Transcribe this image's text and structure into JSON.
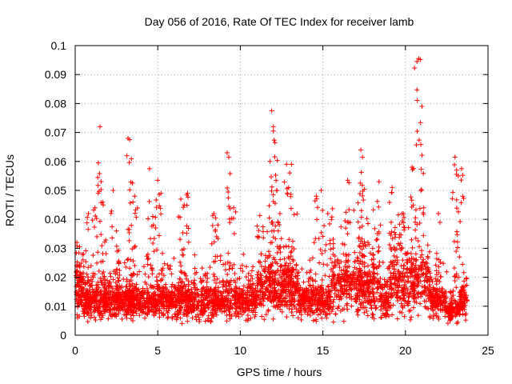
{
  "chart_data": {
    "type": "scatter",
    "title": "Day 056 of 2016, Rate Of TEC Index for receiver lamb",
    "xlabel": "GPS time / hours",
    "ylabel": "ROTI / TECUs",
    "xlim": [
      0,
      25
    ],
    "ylim": [
      0,
      0.1
    ],
    "xticks": [
      0,
      5,
      10,
      15,
      20,
      25
    ],
    "xtick_labels": [
      "0",
      "5",
      "10",
      "15",
      "20",
      "25"
    ],
    "yticks": [
      0,
      0.01,
      0.02,
      0.03,
      0.04,
      0.05,
      0.06,
      0.07,
      0.08,
      0.09,
      0.1
    ],
    "ytick_labels": [
      "0",
      "0.01",
      "0.02",
      "0.03",
      "0.04",
      "0.05",
      "0.06",
      "0.07",
      "0.08",
      "0.09",
      "0.1"
    ],
    "grid": true,
    "marker": "+",
    "marker_color": "#ff0000",
    "series": [
      {
        "name": "ROTI",
        "description_note": "dense point cloud, typical values 0.005-0.02 TECU, spikes below",
        "x": [
          0.1,
          0.3,
          0.5,
          0.8,
          1.2,
          1.4,
          1.5,
          1.7,
          2.3,
          2.5,
          3.2,
          3.3,
          3.5,
          3.6,
          4.5,
          4.7,
          5.0,
          5.2,
          6.4,
          6.6,
          6.8,
          8.4,
          8.5,
          9.2,
          9.3,
          9.6,
          11.8,
          11.9,
          12.0,
          12.1,
          12.2,
          12.4,
          12.8,
          13.1,
          14.6,
          14.9,
          15.3,
          16.5,
          17.3,
          17.4,
          18.4,
          19.2,
          19.8,
          20.4,
          20.7,
          20.8,
          21.0,
          22.0,
          23.0,
          23.1,
          23.2,
          23.4
        ],
        "y": [
          0.032,
          0.02,
          0.028,
          0.042,
          0.044,
          0.0595,
          0.072,
          0.045,
          0.05,
          0.036,
          0.068,
          0.0675,
          0.046,
          0.048,
          0.0575,
          0.041,
          0.0535,
          0.049,
          0.047,
          0.045,
          0.049,
          0.042,
          0.0405,
          0.063,
          0.0615,
          0.044,
          0.06,
          0.0775,
          0.072,
          0.0665,
          0.05,
          0.042,
          0.059,
          0.059,
          0.048,
          0.05,
          0.042,
          0.0535,
          0.064,
          0.0615,
          0.053,
          0.051,
          0.042,
          0.058,
          0.0945,
          0.0955,
          0.079,
          0.042,
          0.0615,
          0.057,
          0.055,
          0.0575
        ]
      }
    ]
  }
}
